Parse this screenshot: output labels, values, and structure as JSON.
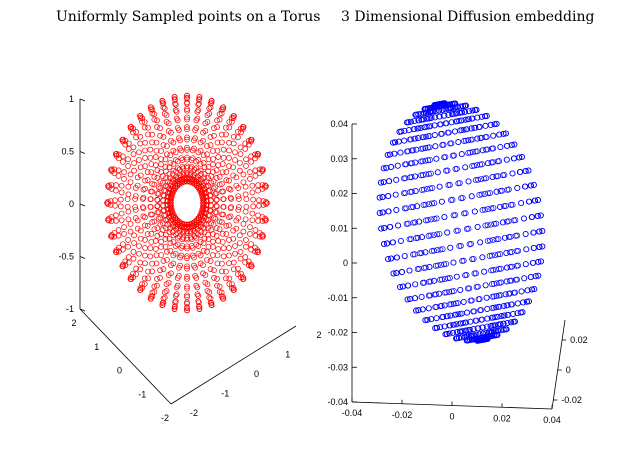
{
  "titles": {
    "left": "Uniformly Sampled points on a Torus",
    "right": "3 Dimensional Diffusion embedding"
  },
  "colors": {
    "left_markers": "#ff0000",
    "right_markers": "#0000ff",
    "axes": "#000000"
  },
  "chart_data": [
    {
      "type": "scatter3d",
      "title": "Uniformly Sampled points on a Torus",
      "marker": "circle",
      "color": "#ff0000",
      "surface": "torus",
      "torus": {
        "major_radius": 1.5,
        "minor_radius": 1,
        "samples_u": 40,
        "samples_v": 26
      },
      "zlim": [
        -1,
        1
      ],
      "xlim": [
        -2,
        2
      ],
      "ylim": [
        -2,
        2
      ],
      "z_ticks": [
        "1",
        "0.5",
        "0",
        "-0.5",
        "-1"
      ],
      "y_ticks": [
        "2",
        "1",
        "0",
        "-1",
        "-2"
      ],
      "x_ticks": [
        "-2",
        "-1",
        "0",
        "1",
        "2"
      ]
    },
    {
      "type": "scatter3d",
      "title": "3 Dimensional Diffusion embedding",
      "marker": "circle",
      "color": "#0000ff",
      "xlim": [
        -0.04,
        0.04
      ],
      "ylim": [
        -0.04,
        0.04
      ],
      "zlim": [
        -0.03,
        0.03
      ],
      "y_ticks": [
        "0.04",
        "0.03",
        "0.02",
        "0.01",
        "0",
        "-0.01",
        "-0.02",
        "-0.03",
        "-0.04"
      ],
      "x_ticks": [
        "-0.04",
        "-0.02",
        "0",
        "0.02",
        "0.04"
      ],
      "z_ticks": [
        "0.02",
        "0",
        "-0.02"
      ]
    }
  ]
}
